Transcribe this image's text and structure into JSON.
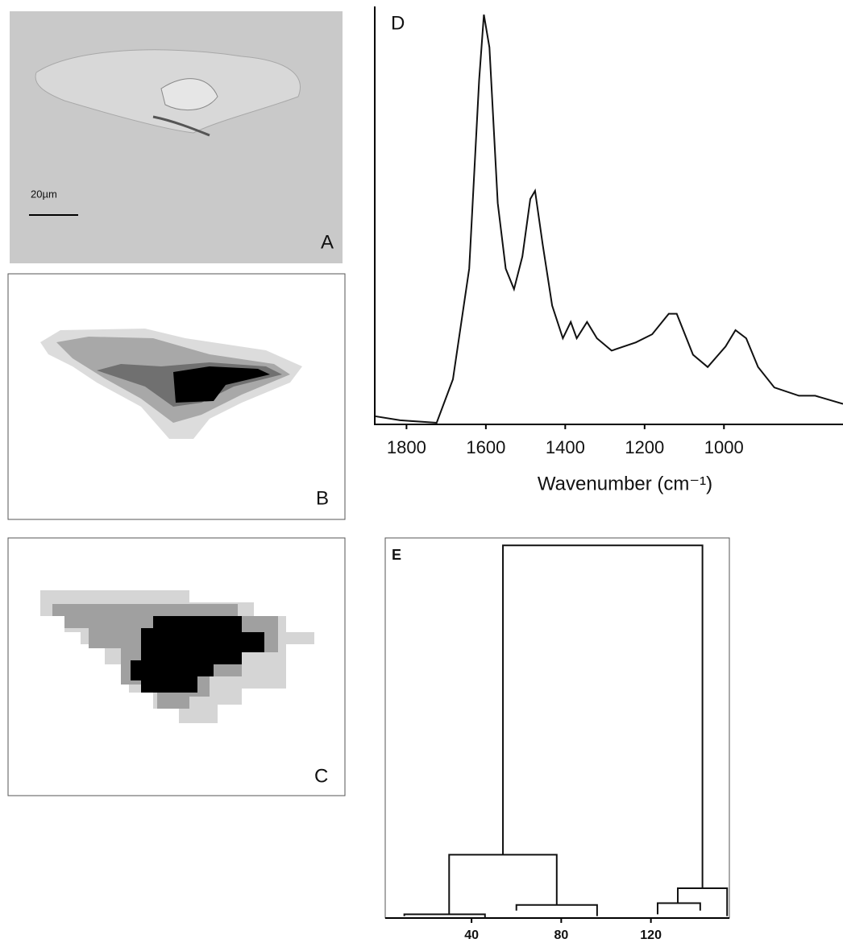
{
  "panels": {
    "a": {
      "label": "A",
      "scale_bar": "20µm"
    },
    "b": {
      "label": "B"
    },
    "c": {
      "label": "C"
    }
  },
  "chart_data": [
    {
      "type": "line",
      "label": "D",
      "xlabel": "Wavenumber (cm⁻¹)",
      "x": [
        1880,
        1816,
        1724,
        1683,
        1642,
        1617,
        1605,
        1591,
        1570,
        1550,
        1529,
        1508,
        1488,
        1476,
        1457,
        1433,
        1406,
        1386,
        1371,
        1345,
        1320,
        1283,
        1222,
        1181,
        1139,
        1119,
        1078,
        1041,
        996,
        971,
        944,
        914,
        873,
        811,
        770,
        700
      ],
      "values": [
        0.02,
        0.01,
        0.004,
        0.11,
        0.38,
        0.84,
        1.0,
        0.92,
        0.54,
        0.38,
        0.33,
        0.41,
        0.55,
        0.57,
        0.44,
        0.29,
        0.21,
        0.25,
        0.21,
        0.25,
        0.21,
        0.18,
        0.2,
        0.22,
        0.27,
        0.27,
        0.17,
        0.14,
        0.19,
        0.23,
        0.21,
        0.14,
        0.09,
        0.07,
        0.07,
        0.05
      ],
      "color": "#111111",
      "xlim": [
        1880,
        700
      ],
      "ylim": [
        0,
        1.02
      ],
      "xticks": [
        1800,
        1600,
        1400,
        1200,
        1000
      ]
    },
    {
      "type": "dendrogram",
      "label": "E",
      "color": "#111111",
      "xlim": [
        1.5,
        155
      ],
      "ylim": [
        0,
        1.02
      ],
      "xticks": [
        40,
        80,
        120
      ],
      "links": [
        {
          "x": [
            54,
            143
          ],
          "height": 1.0,
          "child_heights": [
            0.17,
            0.08
          ]
        },
        {
          "x": [
            30,
            78
          ],
          "height": 0.17,
          "child_heights": [
            0.01,
            0.035
          ]
        },
        {
          "x": [
            132,
            154
          ],
          "height": 0.08,
          "child_heights": [
            0.04,
            0.005
          ]
        },
        {
          "x": [
            10,
            46
          ],
          "height": 0.01,
          "child_heights": [
            0.005,
            0
          ]
        },
        {
          "x": [
            60,
            96
          ],
          "height": 0.035,
          "child_heights": [
            0.02,
            0.005
          ]
        },
        {
          "x": [
            123,
            142
          ],
          "height": 0.04,
          "child_heights": [
            0.01,
            0.02
          ]
        }
      ]
    }
  ]
}
